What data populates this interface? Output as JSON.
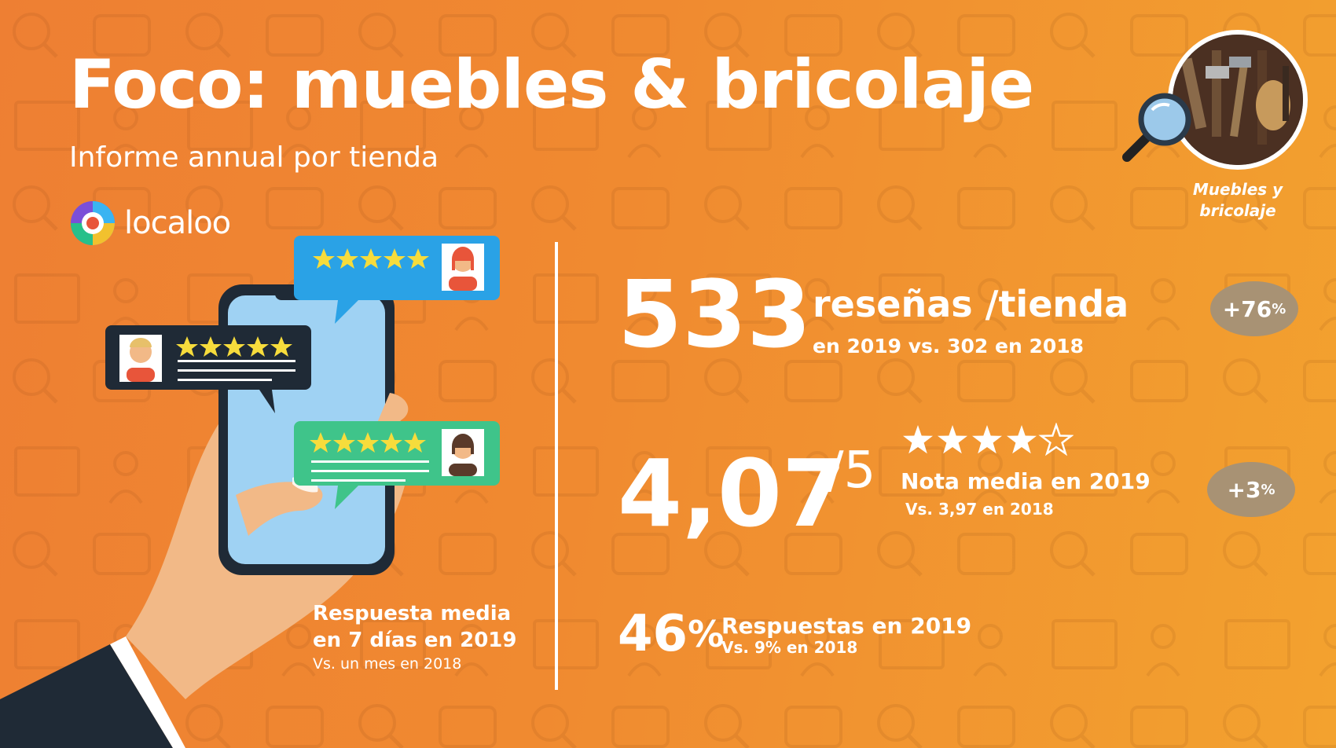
{
  "header": {
    "title": "Foco: muebles & bricolaje",
    "subtitle": "Informe annual por tienda",
    "logo_text": "localoo"
  },
  "category": {
    "caption_line1": "Muebles y",
    "caption_line2": "bricolaje",
    "icon": "magnifier-icon"
  },
  "stats": {
    "reviews": {
      "value": "533",
      "label": "reseñas /tienda",
      "sub": "en 2019 vs. 302 en 2018",
      "badge": "+76",
      "badge_unit": "%"
    },
    "rating": {
      "value": "4,07",
      "scale": "/5",
      "stars_filled": 4,
      "stars_total": 5,
      "label": "Nota media en 2019",
      "sub": "Vs. 3,97 en 2018",
      "badge": "+3",
      "badge_unit": "%"
    },
    "responses": {
      "value": "46",
      "unit": "%",
      "label": "Respuestas en 2019",
      "sub": "Vs. 9% en 2018"
    }
  },
  "response_time": {
    "line1": "Respuesta media",
    "line2": "en 7 días en 2019",
    "sub": "Vs. un mes en 2018"
  },
  "colors": {
    "background_left": "#ee7f33",
    "background_right": "#f3a22f",
    "bubble_blue": "#2aa2e6",
    "bubble_dark": "#1f2a36",
    "bubble_green": "#3fc48a",
    "badge": "#a89274",
    "star": "#f6dc3c"
  }
}
